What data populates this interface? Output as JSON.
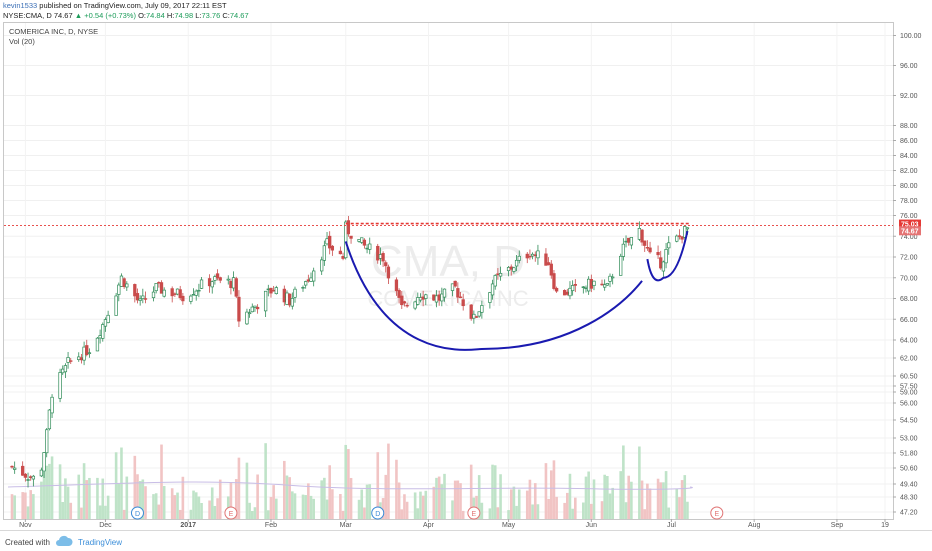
{
  "header": {
    "author": "kevin1533",
    "publish_text": "published on TradingView.com, July 09, 2017 22:11 EST",
    "symbol": "NYSE:CMA, D",
    "last": "74.67",
    "change": "+0.54 (+0.73%)",
    "ohlc": {
      "o_label": "O:",
      "o": "74.84",
      "h_label": "H:",
      "h": "74.98",
      "l_label": "L:",
      "l": "73.76",
      "c_label": "C:",
      "c": "74.67"
    }
  },
  "legend": {
    "title": "COMERICA INC, D, NYSE",
    "vol": "Vol (20)"
  },
  "watermark": {
    "symbol": "CMA, D",
    "name": "COMERICA INC"
  },
  "footer": {
    "created_with": "Created with",
    "brand": "TradingView"
  },
  "colors": {
    "up": "#2e8b57",
    "down": "#c94b4b",
    "pattern": "#1a1ab0",
    "resistance": "#e53935",
    "vol_up": "#bfe3c8",
    "vol_down": "#f1c4c4"
  },
  "chart_data": {
    "type": "candlestick",
    "ylim": [
      46.5,
      101
    ],
    "price_ticks": [
      47.2,
      48.3,
      49.4,
      50.6,
      51.8,
      53.0,
      54.5,
      56.0,
      57.5,
      59.0,
      60.5,
      62.0,
      64.0,
      66.0,
      68.0,
      70.0,
      72.0,
      74.0,
      76.0,
      78.0,
      80.0,
      82.0,
      84.0,
      86.0,
      88.0,
      92.0,
      96.0,
      100.0
    ],
    "x_tick_labels": [
      "Nov",
      "Dec",
      "2017",
      "Feb",
      "Mar",
      "Apr",
      "May",
      "Jun",
      "Jul",
      "Aug",
      "Sep",
      "19"
    ],
    "x_tick_dates": [
      "2016-11-01",
      "2016-12-01",
      "2017-01-01",
      "2017-02-01",
      "2017-03-01",
      "2017-04-01",
      "2017-05-01",
      "2017-06-01",
      "2017-07-01",
      "2017-08-01",
      "2017-09-01",
      "2017-09-19"
    ],
    "price_labels": [
      {
        "value": "75.03",
        "color": "#e53935"
      },
      {
        "value": "74.67",
        "color": "#e57373"
      }
    ],
    "resistance": 75.03,
    "cup": {
      "left": [
        "2017-03-01",
        73.5
      ],
      "bottom": [
        "2017-04-21",
        63.0
      ],
      "right": [
        "2017-06-20",
        69.7
      ]
    },
    "handle": {
      "left": [
        "2017-06-22",
        71.8
      ],
      "bottom": [
        "2017-06-28",
        70.0
      ],
      "right": [
        "2017-07-07",
        74.5
      ]
    },
    "events": [
      {
        "type": "dividend",
        "label": "D",
        "date": "2016-12-13"
      },
      {
        "type": "earnings",
        "label": "E",
        "date": "2017-01-17"
      },
      {
        "type": "dividend",
        "label": "D",
        "date": "2017-03-13"
      },
      {
        "type": "earnings",
        "label": "E",
        "date": "2017-04-18"
      },
      {
        "type": "earnings",
        "label": "E",
        "date": "2017-07-18"
      }
    ],
    "waypoints": [
      [
        "2016-10-27",
        52.0
      ],
      [
        "2016-11-04",
        50.9
      ],
      [
        "2016-11-07",
        52.0
      ],
      [
        "2016-11-09",
        55.0
      ],
      [
        "2016-11-11",
        59.0
      ],
      [
        "2016-11-17",
        61.5
      ],
      [
        "2016-11-25",
        63.0
      ],
      [
        "2016-11-30",
        65.5
      ],
      [
        "2016-12-07",
        70.0
      ],
      [
        "2016-12-14",
        67.5
      ],
      [
        "2016-12-20",
        69.0
      ],
      [
        "2016-12-30",
        68.3
      ],
      [
        "2017-01-10",
        69.8
      ],
      [
        "2017-01-18",
        69.5
      ],
      [
        "2017-01-20",
        66.0
      ],
      [
        "2017-01-27",
        67.5
      ],
      [
        "2017-02-02",
        69.0
      ],
      [
        "2017-02-08",
        67.8
      ],
      [
        "2017-02-15",
        70.0
      ],
      [
        "2017-02-22",
        73.2
      ],
      [
        "2017-02-28",
        72.0
      ],
      [
        "2017-03-01",
        74.8
      ],
      [
        "2017-03-08",
        73.0
      ],
      [
        "2017-03-15",
        72.0
      ],
      [
        "2017-03-22",
        67.0
      ],
      [
        "2017-03-29",
        68.5
      ],
      [
        "2017-04-05",
        68.0
      ],
      [
        "2017-04-11",
        69.0
      ],
      [
        "2017-04-18",
        66.0
      ],
      [
        "2017-04-25",
        69.5
      ],
      [
        "2017-05-02",
        71.0
      ],
      [
        "2017-05-09",
        72.5
      ],
      [
        "2017-05-16",
        71.5
      ],
      [
        "2017-05-19",
        68.5
      ],
      [
        "2017-05-26",
        68.8
      ],
      [
        "2017-06-02",
        69.5
      ],
      [
        "2017-06-07",
        69.0
      ],
      [
        "2017-06-12",
        72.5
      ],
      [
        "2017-06-19",
        74.6
      ],
      [
        "2017-06-23",
        72.0
      ],
      [
        "2017-06-27",
        71.5
      ],
      [
        "2017-06-30",
        73.0
      ],
      [
        "2017-07-07",
        74.7
      ]
    ]
  }
}
